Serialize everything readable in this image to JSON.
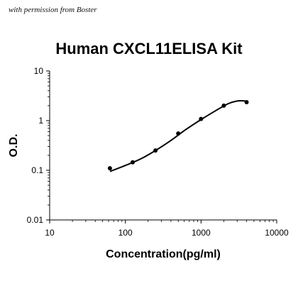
{
  "watermark": "with permission from Boster",
  "chart_data": {
    "type": "scatter",
    "title": "Human CXCL11ELISA Kit",
    "xlabel": "Concentration(pg/ml)",
    "ylabel": "O.D.",
    "xscale": "log",
    "yscale": "log",
    "xlim": [
      10,
      10000
    ],
    "ylim": [
      0.01,
      10
    ],
    "xticks": [
      "10",
      "100",
      "1000",
      "10000"
    ],
    "yticks": [
      "0.01",
      "0.1",
      "1",
      "10"
    ],
    "grid": false,
    "legend": "none",
    "series": [
      {
        "x": [
          62.5,
          125,
          250,
          500,
          1000,
          2000,
          4000
        ],
        "y": [
          0.11,
          0.145,
          0.25,
          0.55,
          1.08,
          2.0,
          2.35
        ]
      }
    ],
    "fit_curve": {
      "x": [
        62.5,
        100,
        160,
        250,
        400,
        630,
        1000,
        1600,
        2300,
        3000,
        3600,
        4000
      ],
      "y": [
        0.095,
        0.125,
        0.17,
        0.25,
        0.4,
        0.66,
        1.05,
        1.62,
        2.2,
        2.48,
        2.5,
        2.45
      ]
    },
    "colors": {
      "line": "#000000",
      "marker": "#000000"
    }
  }
}
